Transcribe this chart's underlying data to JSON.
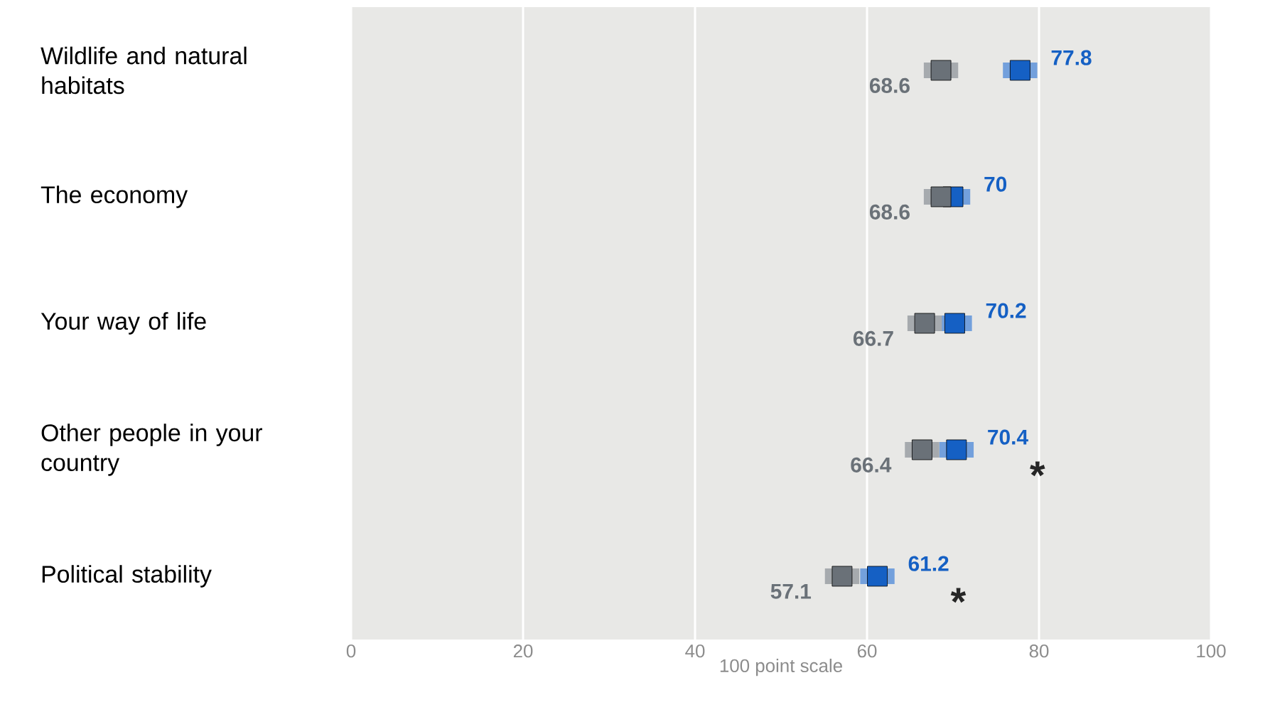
{
  "chart_data": {
    "type": "scatter",
    "orientation": "horizontal",
    "xlabel": "100 point scale",
    "categories": [
      "Wildlife and natural habitats",
      "The economy",
      "Your way of life",
      "Other people in your country",
      "Political stability"
    ],
    "series": [
      {
        "color": "#1560c4",
        "values": [
          77.8,
          70,
          70.2,
          70.4,
          61.2
        ],
        "errors": [
          2,
          2,
          2,
          2,
          2
        ]
      },
      {
        "color": "#6a7178",
        "values": [
          68.6,
          68.6,
          66.7,
          66.4,
          57.1
        ],
        "errors": [
          2,
          2,
          2,
          2,
          2
        ]
      }
    ],
    "xlim": [
      0,
      100
    ],
    "xticks": [
      0,
      20,
      40,
      60,
      80,
      100
    ],
    "grid": "x",
    "data_labels": true,
    "marker": "square",
    "annotations": [
      "*",
      "*"
    ]
  }
}
